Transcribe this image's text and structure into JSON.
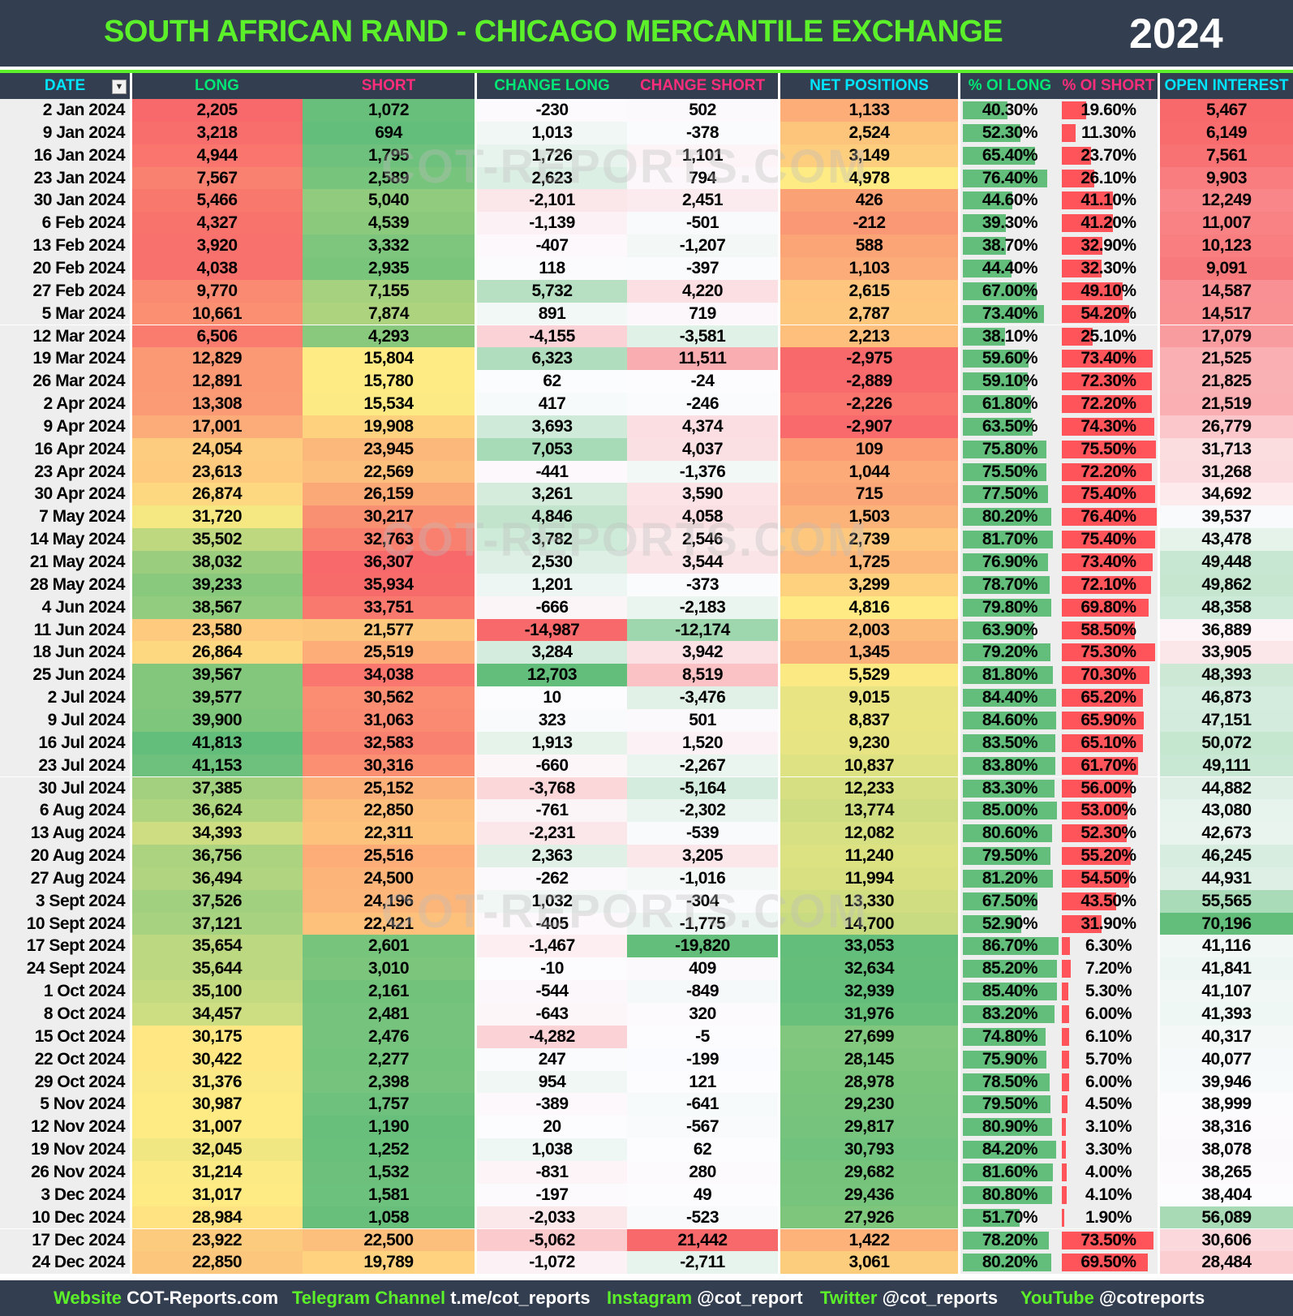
{
  "title": "SOUTH AFRICAN RAND - CHICAGO MERCANTILE EXCHANGE",
  "year": "2024",
  "watermark": "COT-REPORTS.COM",
  "icons": {
    "filter": "filter-sort-icon"
  },
  "colors": {
    "header_bg": "#333e50",
    "title": "#5cf02a",
    "cyan": "#00e5ff",
    "green": "#00e676",
    "pink": "#ff2d7a",
    "scale_red": "#f8696b",
    "scale_yellow": "#ffeb84",
    "scale_green": "#63be7b",
    "scale_white": "#fcfcff",
    "bar_green": "#63be7b",
    "bar_red": "#ff555a"
  },
  "columns": [
    {
      "label": "DATE",
      "color": "cyan"
    },
    {
      "label": "LONG",
      "color": "green"
    },
    {
      "label": "SHORT",
      "color": "pink"
    },
    {
      "label": "CHANGE LONG",
      "color": "green"
    },
    {
      "label": "CHANGE SHORT",
      "color": "pink"
    },
    {
      "label": "NET POSITIONS",
      "color": "cyan"
    },
    {
      "label": "% OI LONG",
      "color": "green"
    },
    {
      "label": "% OI SHORT",
      "color": "pink"
    },
    {
      "label": "OPEN INTEREST",
      "color": "cyan"
    }
  ],
  "rows": [
    [
      "2 Jan 2024",
      "2,205",
      "1,072",
      "-230",
      "502",
      "1,133",
      "40.30%",
      "19.60%",
      "5,467"
    ],
    [
      "9 Jan 2024",
      "3,218",
      "694",
      "1,013",
      "-378",
      "2,524",
      "52.30%",
      "11.30%",
      "6,149"
    ],
    [
      "16 Jan 2024",
      "4,944",
      "1,795",
      "1,726",
      "1,101",
      "3,149",
      "65.40%",
      "23.70%",
      "7,561"
    ],
    [
      "23 Jan 2024",
      "7,567",
      "2,589",
      "2,623",
      "794",
      "4,978",
      "76.40%",
      "26.10%",
      "9,903"
    ],
    [
      "30 Jan 2024",
      "5,466",
      "5,040",
      "-2,101",
      "2,451",
      "426",
      "44.60%",
      "41.10%",
      "12,249"
    ],
    [
      "6 Feb 2024",
      "4,327",
      "4,539",
      "-1,139",
      "-501",
      "-212",
      "39.30%",
      "41.20%",
      "11,007"
    ],
    [
      "13 Feb 2024",
      "3,920",
      "3,332",
      "-407",
      "-1,207",
      "588",
      "38.70%",
      "32.90%",
      "10,123"
    ],
    [
      "20 Feb 2024",
      "4,038",
      "2,935",
      "118",
      "-397",
      "1,103",
      "44.40%",
      "32.30%",
      "9,091"
    ],
    [
      "27 Feb 2024",
      "9,770",
      "7,155",
      "5,732",
      "4,220",
      "2,615",
      "67.00%",
      "49.10%",
      "14,587"
    ],
    [
      "5 Mar 2024",
      "10,661",
      "7,874",
      "891",
      "719",
      "2,787",
      "73.40%",
      "54.20%",
      "14,517"
    ],
    [
      "12 Mar 2024",
      "6,506",
      "4,293",
      "-4,155",
      "-3,581",
      "2,213",
      "38.10%",
      "25.10%",
      "17,079"
    ],
    [
      "19 Mar 2024",
      "12,829",
      "15,804",
      "6,323",
      "11,511",
      "-2,975",
      "59.60%",
      "73.40%",
      "21,525"
    ],
    [
      "26 Mar 2024",
      "12,891",
      "15,780",
      "62",
      "-24",
      "-2,889",
      "59.10%",
      "72.30%",
      "21,825"
    ],
    [
      "2 Apr 2024",
      "13,308",
      "15,534",
      "417",
      "-246",
      "-2,226",
      "61.80%",
      "72.20%",
      "21,519"
    ],
    [
      "9 Apr 2024",
      "17,001",
      "19,908",
      "3,693",
      "4,374",
      "-2,907",
      "63.50%",
      "74.30%",
      "26,779"
    ],
    [
      "16 Apr 2024",
      "24,054",
      "23,945",
      "7,053",
      "4,037",
      "109",
      "75.80%",
      "75.50%",
      "31,713"
    ],
    [
      "23 Apr 2024",
      "23,613",
      "22,569",
      "-441",
      "-1,376",
      "1,044",
      "75.50%",
      "72.20%",
      "31,268"
    ],
    [
      "30 Apr 2024",
      "26,874",
      "26,159",
      "3,261",
      "3,590",
      "715",
      "77.50%",
      "75.40%",
      "34,692"
    ],
    [
      "7 May 2024",
      "31,720",
      "30,217",
      "4,846",
      "4,058",
      "1,503",
      "80.20%",
      "76.40%",
      "39,537"
    ],
    [
      "14 May 2024",
      "35,502",
      "32,763",
      "3,782",
      "2,546",
      "2,739",
      "81.70%",
      "75.40%",
      "43,478"
    ],
    [
      "21 May 2024",
      "38,032",
      "36,307",
      "2,530",
      "3,544",
      "1,725",
      "76.90%",
      "73.40%",
      "49,448"
    ],
    [
      "28 May 2024",
      "39,233",
      "35,934",
      "1,201",
      "-373",
      "3,299",
      "78.70%",
      "72.10%",
      "49,862"
    ],
    [
      "4 Jun 2024",
      "38,567",
      "33,751",
      "-666",
      "-2,183",
      "4,816",
      "79.80%",
      "69.80%",
      "48,358"
    ],
    [
      "11 Jun 2024",
      "23,580",
      "21,577",
      "-14,987",
      "-12,174",
      "2,003",
      "63.90%",
      "58.50%",
      "36,889"
    ],
    [
      "18 Jun 2024",
      "26,864",
      "25,519",
      "3,284",
      "3,942",
      "1,345",
      "79.20%",
      "75.30%",
      "33,905"
    ],
    [
      "25 Jun 2024",
      "39,567",
      "34,038",
      "12,703",
      "8,519",
      "5,529",
      "81.80%",
      "70.30%",
      "48,393"
    ],
    [
      "2 Jul 2024",
      "39,577",
      "30,562",
      "10",
      "-3,476",
      "9,015",
      "84.40%",
      "65.20%",
      "46,873"
    ],
    [
      "9 Jul 2024",
      "39,900",
      "31,063",
      "323",
      "501",
      "8,837",
      "84.60%",
      "65.90%",
      "47,151"
    ],
    [
      "16 Jul 2024",
      "41,813",
      "32,583",
      "1,913",
      "1,520",
      "9,230",
      "83.50%",
      "65.10%",
      "50,072"
    ],
    [
      "23 Jul 2024",
      "41,153",
      "30,316",
      "-660",
      "-2,267",
      "10,837",
      "83.80%",
      "61.70%",
      "49,111"
    ],
    [
      "30 Jul 2024",
      "37,385",
      "25,152",
      "-3,768",
      "-5,164",
      "12,233",
      "83.30%",
      "56.00%",
      "44,882"
    ],
    [
      "6 Aug 2024",
      "36,624",
      "22,850",
      "-761",
      "-2,302",
      "13,774",
      "85.00%",
      "53.00%",
      "43,080"
    ],
    [
      "13 Aug 2024",
      "34,393",
      "22,311",
      "-2,231",
      "-539",
      "12,082",
      "80.60%",
      "52.30%",
      "42,673"
    ],
    [
      "20 Aug 2024",
      "36,756",
      "25,516",
      "2,363",
      "3,205",
      "11,240",
      "79.50%",
      "55.20%",
      "46,245"
    ],
    [
      "27 Aug 2024",
      "36,494",
      "24,500",
      "-262",
      "-1,016",
      "11,994",
      "81.20%",
      "54.50%",
      "44,931"
    ],
    [
      "3 Sept 2024",
      "37,526",
      "24,196",
      "1,032",
      "-304",
      "13,330",
      "67.50%",
      "43.50%",
      "55,565"
    ],
    [
      "10 Sept 2024",
      "37,121",
      "22,421",
      "-405",
      "-1,775",
      "14,700",
      "52.90%",
      "31.90%",
      "70,196"
    ],
    [
      "17 Sept 2024",
      "35,654",
      "2,601",
      "-1,467",
      "-19,820",
      "33,053",
      "86.70%",
      "6.30%",
      "41,116"
    ],
    [
      "24 Sept 2024",
      "35,644",
      "3,010",
      "-10",
      "409",
      "32,634",
      "85.20%",
      "7.20%",
      "41,841"
    ],
    [
      "1 Oct 2024",
      "35,100",
      "2,161",
      "-544",
      "-849",
      "32,939",
      "85.40%",
      "5.30%",
      "41,107"
    ],
    [
      "8 Oct 2024",
      "34,457",
      "2,481",
      "-643",
      "320",
      "31,976",
      "83.20%",
      "6.00%",
      "41,393"
    ],
    [
      "15 Oct 2024",
      "30,175",
      "2,476",
      "-4,282",
      "-5",
      "27,699",
      "74.80%",
      "6.10%",
      "40,317"
    ],
    [
      "22 Oct 2024",
      "30,422",
      "2,277",
      "247",
      "-199",
      "28,145",
      "75.90%",
      "5.70%",
      "40,077"
    ],
    [
      "29 Oct 2024",
      "31,376",
      "2,398",
      "954",
      "121",
      "28,978",
      "78.50%",
      "6.00%",
      "39,946"
    ],
    [
      "5 Nov 2024",
      "30,987",
      "1,757",
      "-389",
      "-641",
      "29,230",
      "79.50%",
      "4.50%",
      "38,999"
    ],
    [
      "12 Nov 2024",
      "31,007",
      "1,190",
      "20",
      "-567",
      "29,817",
      "80.90%",
      "3.10%",
      "38,316"
    ],
    [
      "19 Nov 2024",
      "32,045",
      "1,252",
      "1,038",
      "62",
      "30,793",
      "84.20%",
      "3.30%",
      "38,078"
    ],
    [
      "26 Nov 2024",
      "31,214",
      "1,532",
      "-831",
      "280",
      "29,682",
      "81.60%",
      "4.00%",
      "38,265"
    ],
    [
      "3 Dec 2024",
      "31,017",
      "1,581",
      "-197",
      "49",
      "29,436",
      "80.80%",
      "4.10%",
      "38,404"
    ],
    [
      "10 Dec 2024",
      "28,984",
      "1,058",
      "-2,033",
      "-523",
      "27,926",
      "51.70%",
      "1.90%",
      "56,089"
    ],
    [
      "17 Dec 2024",
      "23,922",
      "22,500",
      "-5,062",
      "21,442",
      "1,422",
      "78.20%",
      "73.50%",
      "30,606"
    ],
    [
      "24 Dec 2024",
      "22,850",
      "19,789",
      "-1,072",
      "-2,711",
      "3,061",
      "80.20%",
      "69.50%",
      "28,484"
    ]
  ],
  "footer": [
    {
      "key": "Website",
      "value": "COT-Reports.com"
    },
    {
      "key": "Telegram Channel",
      "value": "t.me/cot_reports"
    },
    {
      "key": "Instagram",
      "value": "@cot_report"
    },
    {
      "key": "Twitter",
      "value": "@cot_reports"
    },
    {
      "key": "YouTube",
      "value": "@cotreports"
    }
  ]
}
